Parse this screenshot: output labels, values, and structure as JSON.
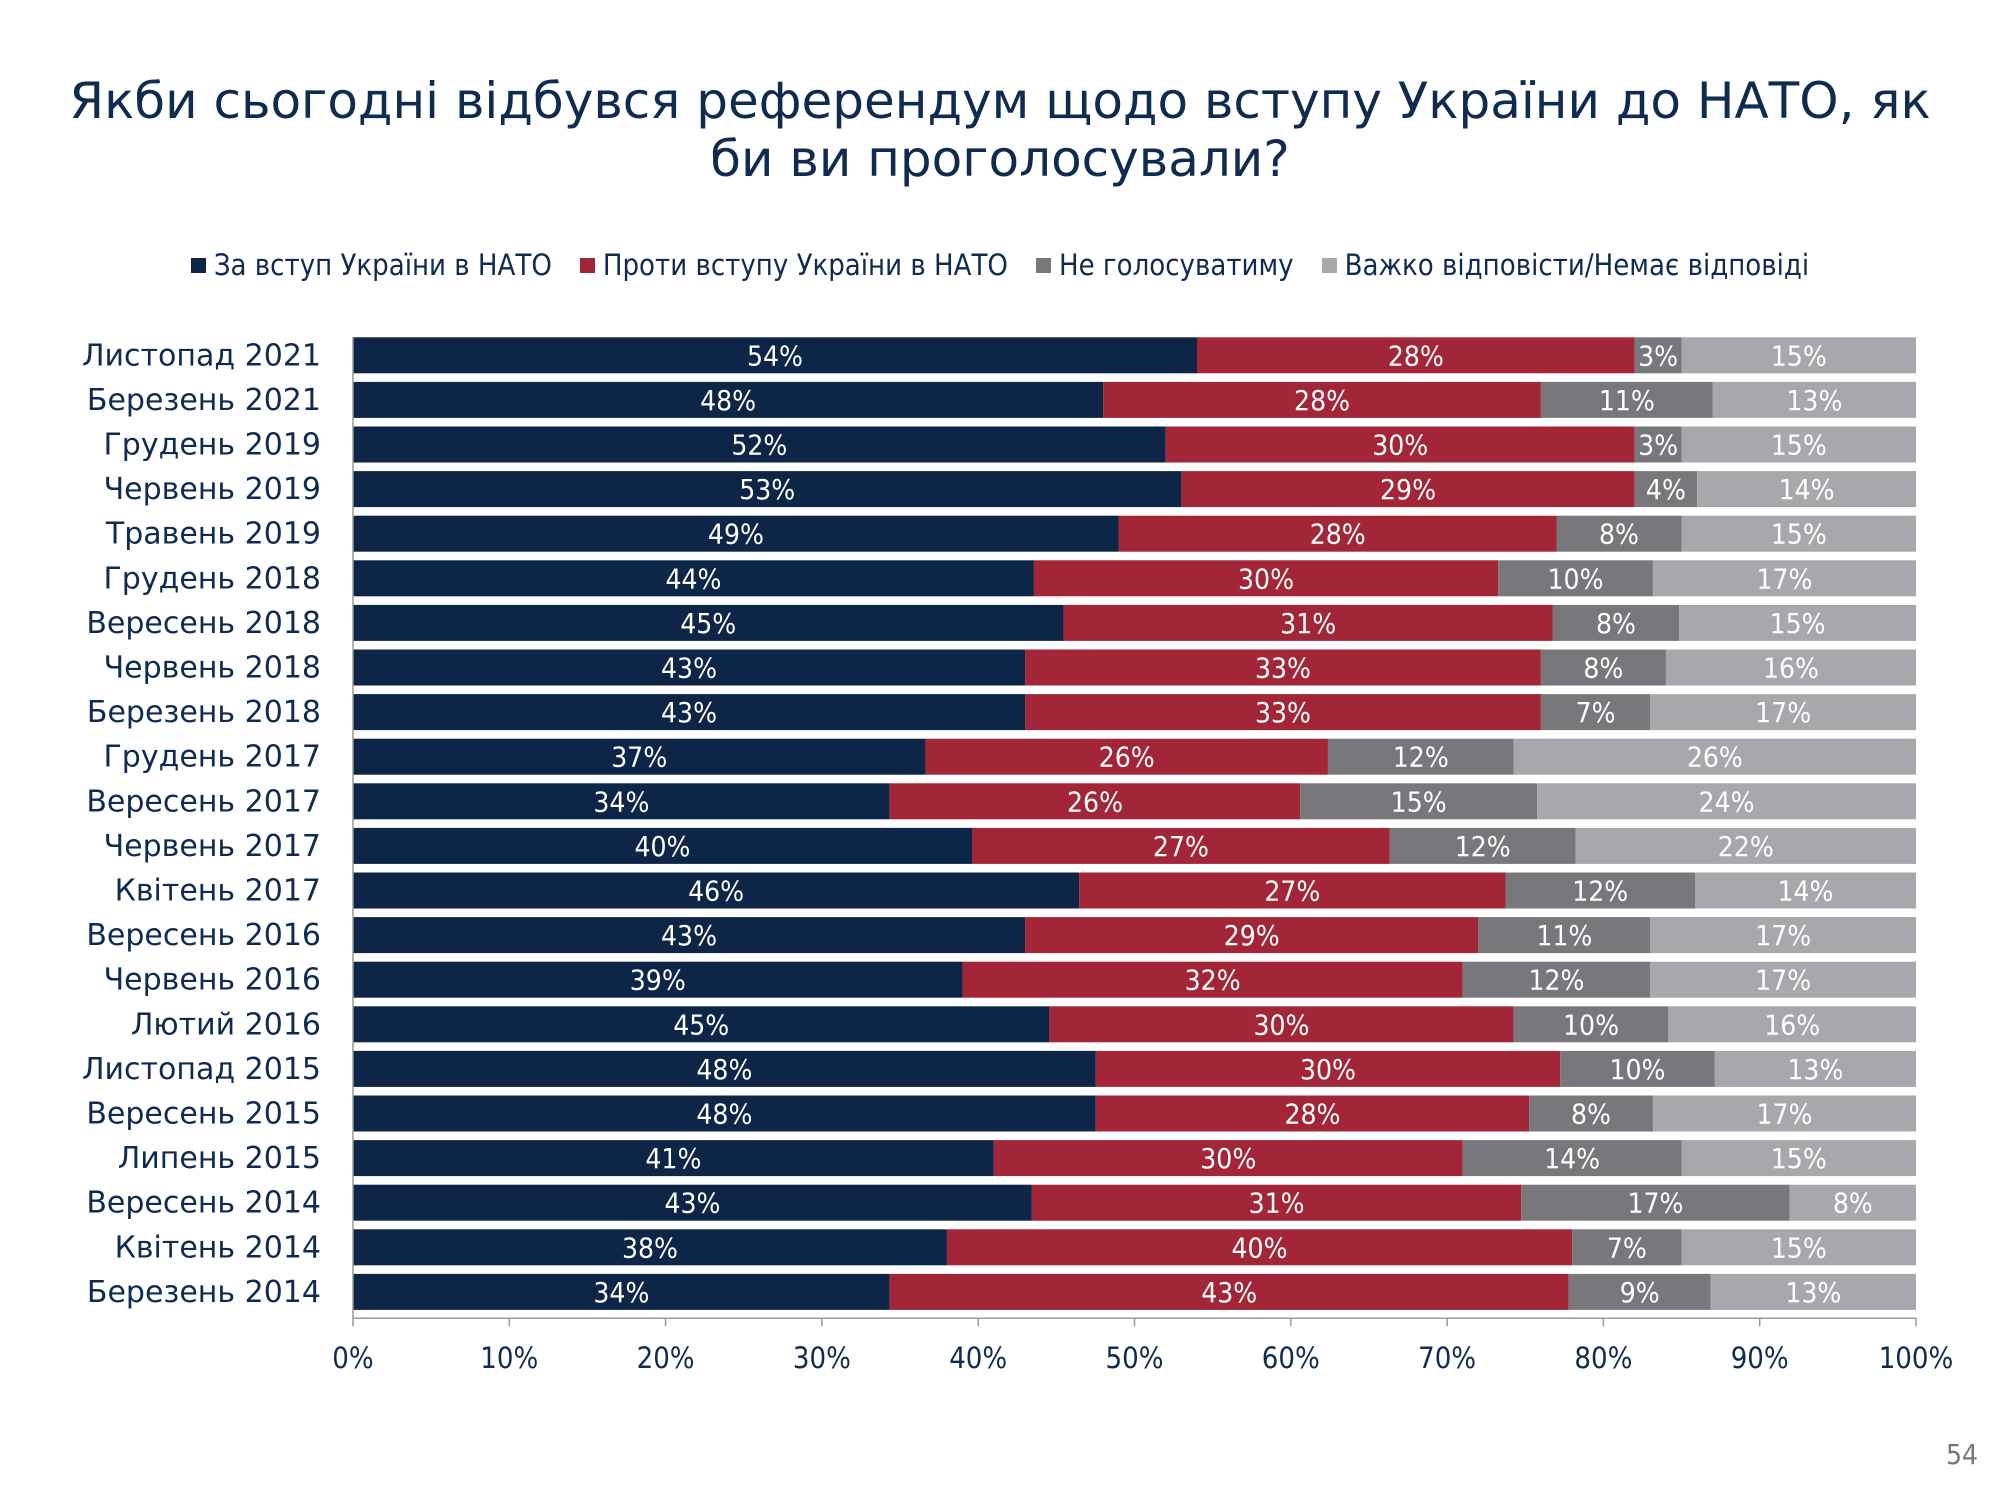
{
  "chart_data": {
    "type": "bar",
    "orientation": "horizontal",
    "stacked": true,
    "title": "Якби сьогодні відбувся референдум щодо вступу України до НАТО, як би ви проголосували?",
    "title_lines": [
      "Якби сьогодні відбувся референдум щодо вступу України до НАТО, як",
      "би ви проголосували?"
    ],
    "legend_position": "top",
    "categories": [
      "Листопад 2021",
      "Березень 2021",
      "Грудень 2019",
      "Червень 2019",
      "Травень 2019",
      "Грудень 2018",
      "Вересень 2018",
      "Червень 2018",
      "Березень 2018",
      "Грудень 2017",
      "Вересень 2017",
      "Червень 2017",
      "Квітень 2017",
      "Вересень 2016",
      "Червень 2016",
      "Лютий 2016",
      "Листопад 2015",
      "Вересень 2015",
      "Липень 2015",
      "Вересень 2014",
      "Квітень 2014",
      "Березень 2014"
    ],
    "series": [
      {
        "name": "За вступ України в НАТО",
        "color": "#0d2546",
        "values": [
          54,
          48,
          52,
          53,
          49,
          44,
          45,
          43,
          43,
          37,
          34,
          40,
          46,
          43,
          39,
          45,
          48,
          48,
          41,
          43,
          38,
          34
        ]
      },
      {
        "name": "Проти вступу України в НАТО",
        "color": "#a22637",
        "values": [
          28,
          28,
          30,
          29,
          28,
          30,
          31,
          33,
          33,
          26,
          26,
          27,
          27,
          29,
          32,
          30,
          30,
          28,
          30,
          31,
          40,
          43
        ]
      },
      {
        "name": "Не голосуватиму",
        "color": "#78787c",
        "values": [
          3,
          11,
          3,
          4,
          8,
          10,
          8,
          8,
          7,
          12,
          15,
          12,
          12,
          11,
          12,
          10,
          10,
          8,
          14,
          17,
          7,
          9
        ]
      },
      {
        "name": "Важко відповісти/Немає відповіді",
        "color": "#a8a8ac",
        "values": [
          15,
          13,
          15,
          14,
          15,
          17,
          15,
          16,
          17,
          26,
          24,
          22,
          14,
          17,
          17,
          16,
          13,
          17,
          15,
          8,
          15,
          13
        ]
      }
    ],
    "xlim": [
      0,
      100
    ],
    "x_ticks": [
      "0%",
      "10%",
      "20%",
      "30%",
      "40%",
      "50%",
      "60%",
      "70%",
      "80%",
      "90%",
      "100%"
    ],
    "value_suffix": "%"
  },
  "page_number": "54"
}
